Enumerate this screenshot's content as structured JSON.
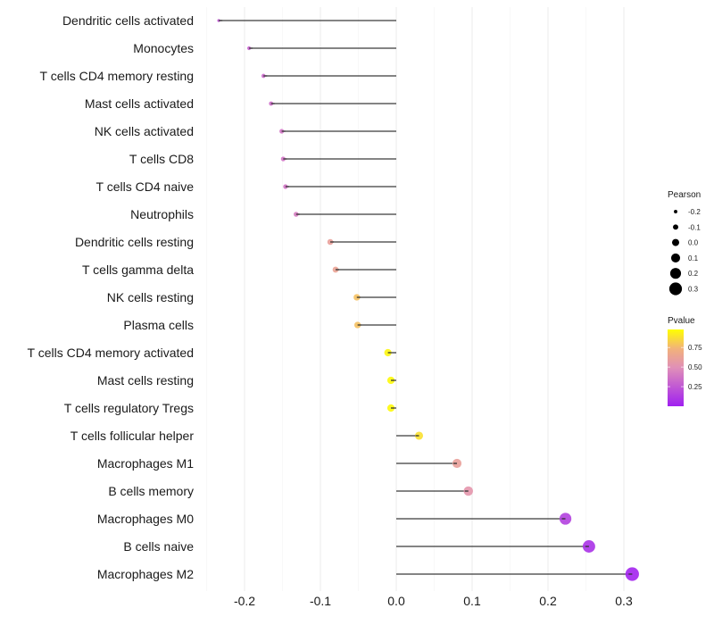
{
  "chart_data": {
    "type": "lollipop",
    "title": "",
    "xlabel": "",
    "ylabel": "",
    "xlim": [
      -0.25,
      0.32
    ],
    "x_ticks": [
      -0.2,
      -0.1,
      0.0,
      0.1,
      0.2,
      0.3
    ],
    "x_tick_labels": [
      "-0.2",
      "-0.1",
      "0.0",
      "0.1",
      "0.2",
      "0.3"
    ],
    "grid": true,
    "categories": [
      "Dendritic cells activated",
      "Monocytes",
      "T cells CD4 memory resting",
      "Mast cells activated",
      "NK cells activated",
      "T cells CD8",
      "T cells CD4 naive",
      "Neutrophils",
      "Dendritic cells resting",
      "T cells gamma delta",
      "NK cells resting",
      "Plasma cells",
      "T cells CD4 memory activated",
      "Mast cells resting",
      "T cells regulatory  Tregs ",
      "T cells follicular helper",
      "Macrophages M1",
      "B cells memory",
      "Macrophages M0",
      "B cells naive",
      "Macrophages M2"
    ],
    "pearson": [
      -0.234,
      -0.194,
      -0.175,
      -0.165,
      -0.151,
      -0.149,
      -0.146,
      -0.132,
      -0.087,
      -0.08,
      -0.052,
      -0.051,
      -0.011,
      -0.007,
      -0.007,
      0.03,
      0.08,
      0.095,
      0.223,
      0.254,
      0.311
    ],
    "pvalue": [
      0.25,
      0.3,
      0.33,
      0.35,
      0.38,
      0.38,
      0.38,
      0.42,
      0.62,
      0.64,
      0.8,
      0.8,
      0.97,
      0.98,
      0.98,
      0.9,
      0.62,
      0.55,
      0.15,
      0.08,
      0.02
    ],
    "legend": {
      "size": {
        "title": "Pearson",
        "labels": [
          "-0.2",
          "-0.1",
          "0.0",
          "0.1",
          "0.2",
          "0.3"
        ],
        "values": [
          -0.2,
          -0.1,
          0.0,
          0.1,
          0.2,
          0.3
        ]
      },
      "color": {
        "title": "Pvalue",
        "labels": [
          "0.75",
          "0.50",
          "0.25"
        ],
        "values": [
          0.75,
          0.5,
          0.25
        ],
        "range": [
          0.0,
          1.0
        ],
        "low_color": "#a020f0",
        "mid_color": "#e98fb0",
        "high_color": "#ffff00"
      },
      "placement": "right"
    }
  }
}
